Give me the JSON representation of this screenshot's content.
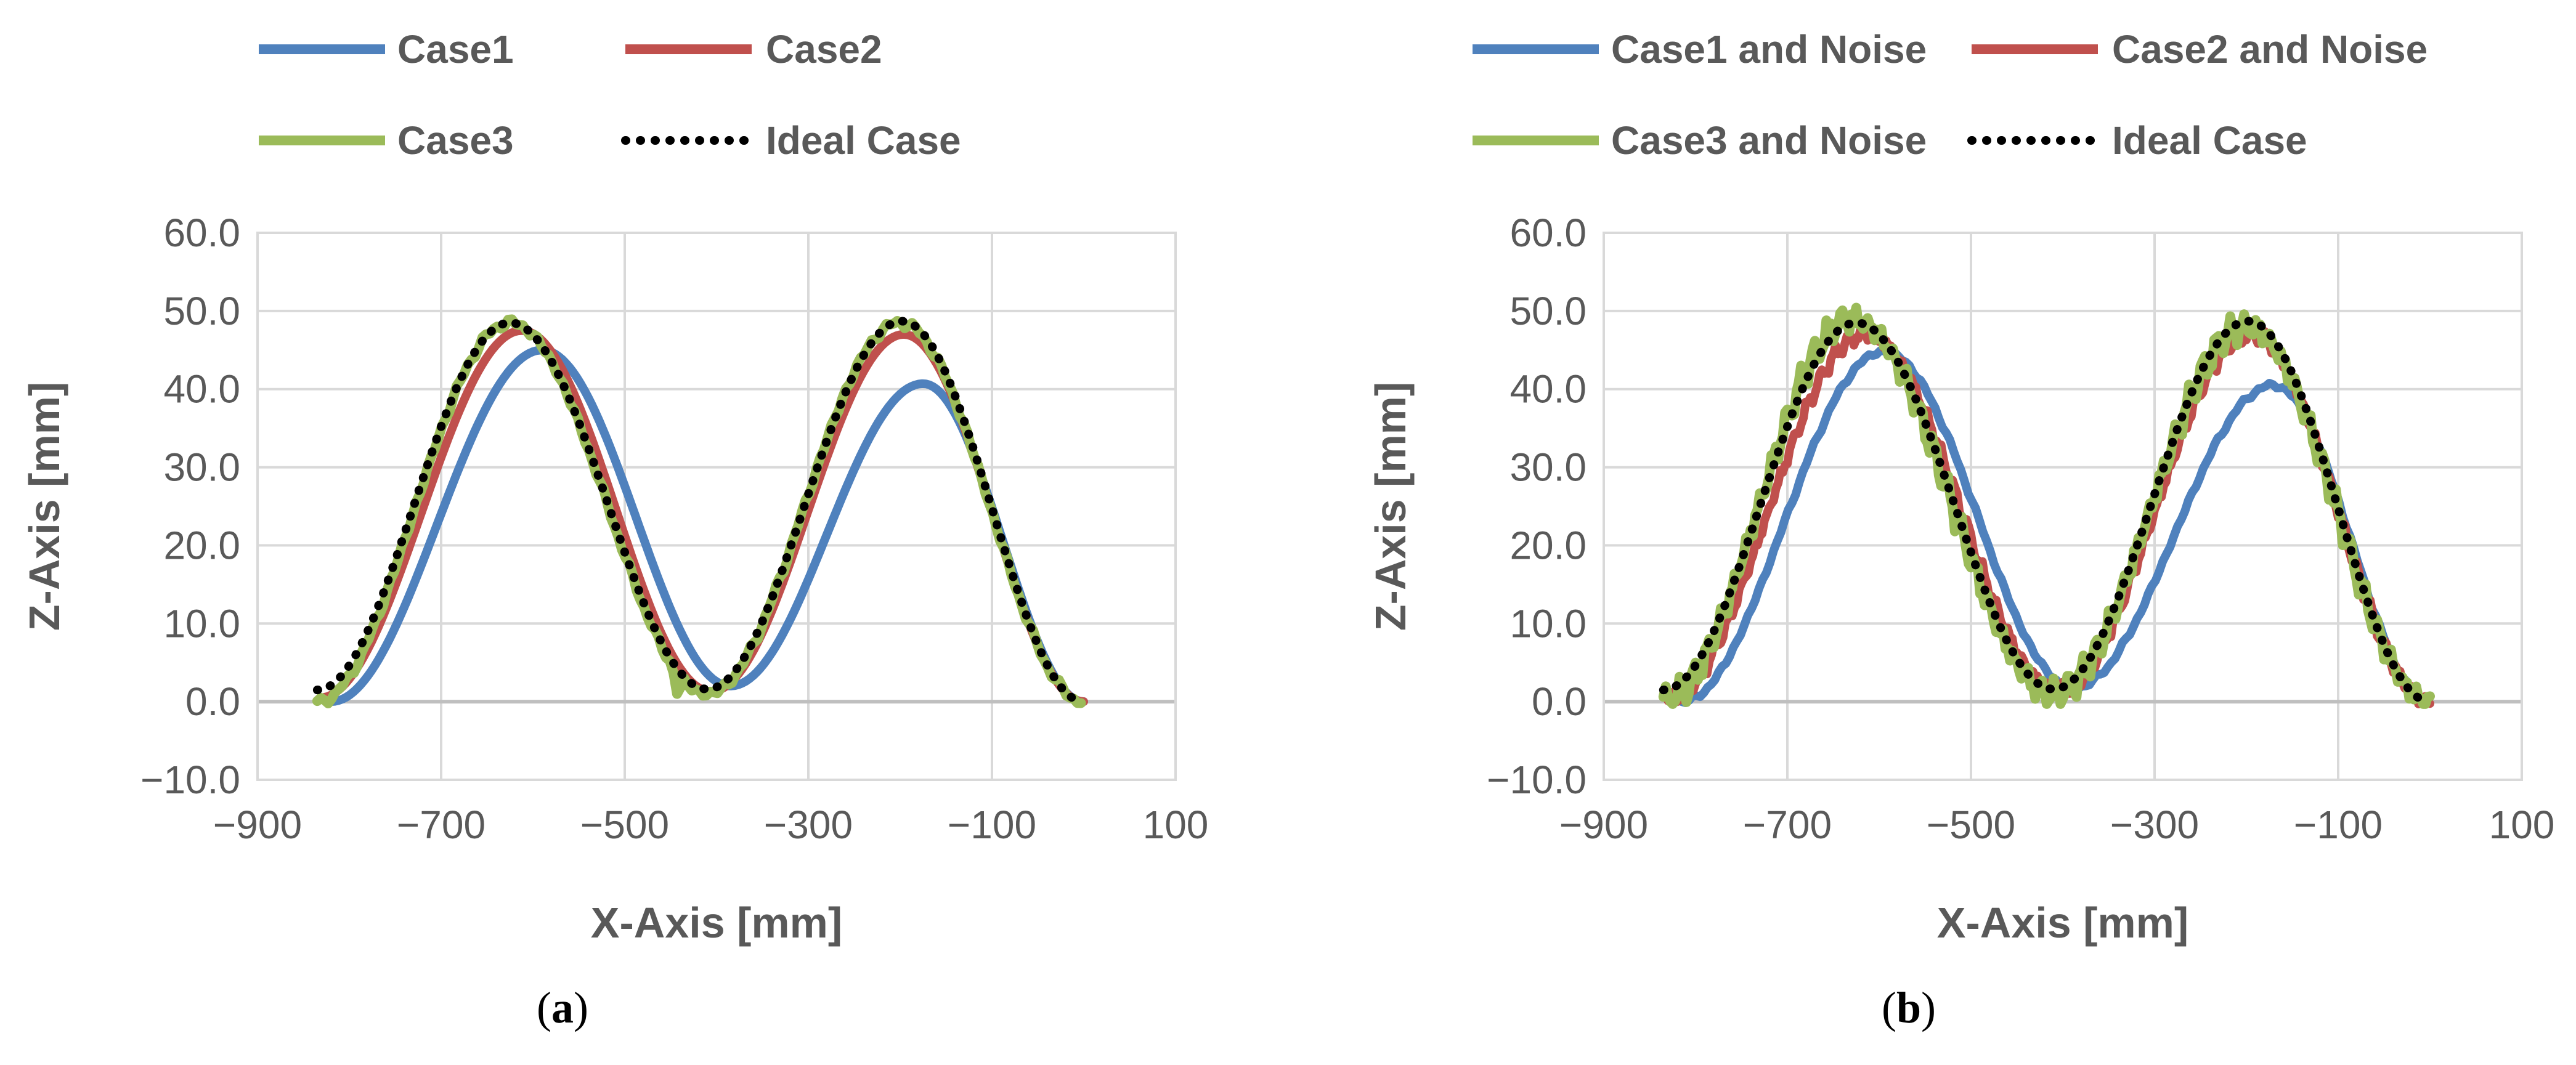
{
  "colors": {
    "case1": "#4F81BD",
    "case2": "#C0504D",
    "case3": "#9BBB59",
    "ideal": "#000000",
    "grid": "#D9D9D9",
    "text": "#595959"
  },
  "chart_data": [
    {
      "type": "line",
      "panel": "a",
      "caption": {
        "open": "(",
        "letter": "a",
        "close": ")"
      },
      "xlabel": "X-Axis [mm]",
      "ylabel": "Z-Axis [mm]",
      "xlim": [
        -900,
        100
      ],
      "ylim": [
        -10,
        60
      ],
      "xticks": [
        "−900",
        "−700",
        "−500",
        "−300",
        "−100",
        "100"
      ],
      "yticks": [
        "−10.0",
        "0.0",
        "10.0",
        "20.0",
        "30.0",
        "40.0",
        "50.0",
        "60.0"
      ],
      "grid": true,
      "legend_position": "top",
      "series": [
        {
          "name": "Case1",
          "color_key": "case1",
          "style": "solid",
          "noise": 0,
          "x0": -820,
          "x1": 0,
          "y0": 0,
          "peaks": [
            [
              -590,
              45.0
            ],
            [
              -175,
              40.7
            ]
          ],
          "valleys": [
            [
              -385,
              2.0
            ]
          ]
        },
        {
          "name": "Case2",
          "color_key": "case2",
          "style": "solid",
          "noise": 0,
          "x0": -832,
          "x1": 0,
          "y0": 0.5,
          "peaks": [
            [
              -612,
              47.5
            ],
            [
              -196,
              47.0
            ]
          ],
          "valleys": [
            [
              -406,
              1.3
            ]
          ]
        },
        {
          "name": "Case3",
          "color_key": "case3",
          "style": "solid",
          "noise": 0.6,
          "x0": -835,
          "x1": 0,
          "y0": 0,
          "peaks": [
            [
              -625,
              48.5
            ],
            [
              -200,
              48.5
            ]
          ],
          "valleys": [
            [
              -410,
              1.0
            ]
          ],
          "spikes": [
            [
              -442,
              0.5
            ]
          ]
        },
        {
          "name": "Ideal Case",
          "color_key": "ideal",
          "style": "dotted",
          "noise": 0,
          "x0": -835,
          "x1": 0,
          "y0": 1.5,
          "peaks": [
            [
              -625,
              48.5
            ],
            [
              -198,
              48.7
            ]
          ],
          "valleys": [
            [
              -410,
              1.6
            ]
          ]
        }
      ]
    },
    {
      "type": "line",
      "panel": "b",
      "caption": {
        "open": "(",
        "letter": "b",
        "close": ")"
      },
      "xlabel": "X-Axis [mm]",
      "ylabel": "Z-Axis [mm]",
      "xlim": [
        -900,
        100
      ],
      "ylim": [
        -10,
        60
      ],
      "xticks": [
        "−900",
        "−700",
        "−500",
        "−300",
        "−100",
        "100"
      ],
      "yticks": [
        "−10.0",
        "0.0",
        "10.0",
        "20.0",
        "30.0",
        "40.0",
        "50.0",
        "60.0"
      ],
      "grid": true,
      "legend_position": "top",
      "series": [
        {
          "name": "Case1 and Noise",
          "color_key": "case1",
          "style": "solid",
          "noise": 0.4,
          "x0": -815,
          "x1": 0,
          "y0": 0,
          "peaks": [
            [
              -595,
              44.8
            ],
            [
              -170,
              40.5
            ]
          ],
          "valleys": [
            [
              -388,
              1.8
            ]
          ]
        },
        {
          "name": "Case2 and Noise",
          "color_key": "case2",
          "style": "solid",
          "noise": 1.2,
          "x0": -830,
          "x1": 0,
          "y0": 0.5,
          "peaks": [
            [
              -615,
              47.0
            ],
            [
              -195,
              47.0
            ]
          ],
          "valleys": [
            [
              -405,
              1.5
            ]
          ]
        },
        {
          "name": "Case3 and Noise",
          "color_key": "case3",
          "style": "solid",
          "noise": 2.2,
          "x0": -835,
          "x1": 0,
          "y0": 0,
          "peaks": [
            [
              -630,
              49.0
            ],
            [
              -200,
              48.0
            ]
          ],
          "valleys": [
            [
              -410,
              1.0
            ]
          ]
        },
        {
          "name": "Ideal Case",
          "color_key": "ideal",
          "style": "dotted",
          "noise": 0,
          "x0": -835,
          "x1": 0,
          "y0": 1.5,
          "peaks": [
            [
              -625,
              48.5
            ],
            [
              -198,
              48.7
            ]
          ],
          "valleys": [
            [
              -410,
              1.6
            ]
          ]
        }
      ]
    }
  ]
}
